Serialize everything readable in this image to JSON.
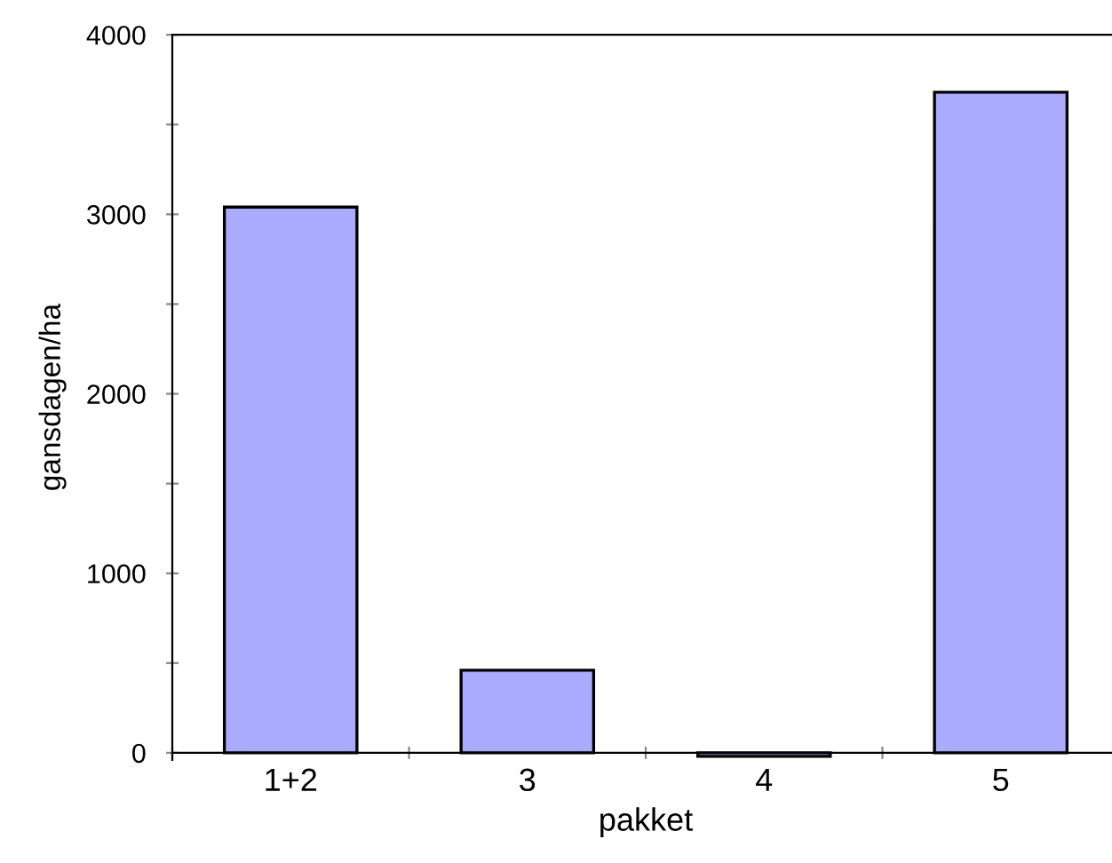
{
  "chart_data": {
    "type": "bar",
    "xlabel": "pakket",
    "ylabel": "gansdagen/ha",
    "categories": [
      "1+2",
      "3",
      "4",
      "5"
    ],
    "values": [
      3040,
      460,
      -20,
      3680
    ],
    "color": "#aaaaff",
    "ylim": [
      -40,
      4000
    ],
    "yticks": [
      0,
      {
        "value": 500,
        "label": null
      },
      1000,
      {
        "value": 1500,
        "label": null
      },
      2000,
      {
        "value": 2500,
        "label": null
      },
      3000,
      {
        "value": 3500,
        "label": null
      },
      4000
    ],
    "grid": false,
    "legend": false
  }
}
